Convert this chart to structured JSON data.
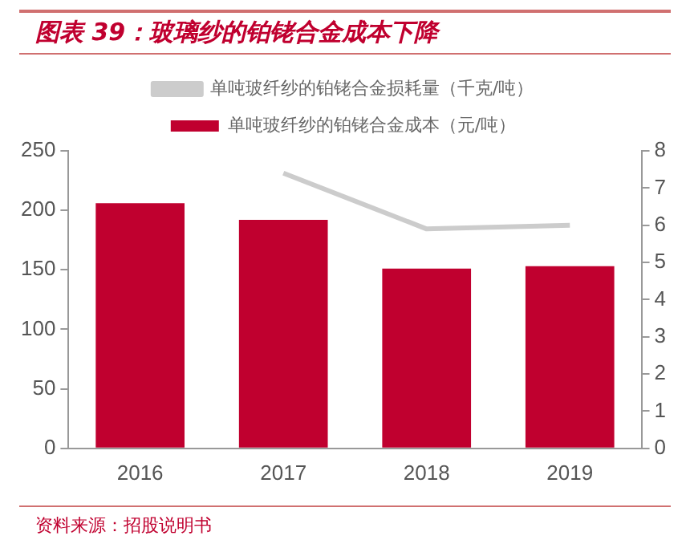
{
  "chart_data": {
    "type": "bar",
    "title": "图表 39：玻璃纱的铂铑合金成本下降",
    "categories": [
      "2016",
      "2017",
      "2018",
      "2019"
    ],
    "series": [
      {
        "name": "单吨玻纤纱的铂铑合金成本（元/吨）",
        "color": "#c0002f",
        "values": [
          206,
          192,
          151,
          153
        ]
      },
      {
        "name": "单吨玻纤纱的铂铑合金损耗量（千克/吨）",
        "type": "line",
        "axis": "y2",
        "color": "#cccccc",
        "values": [
          null,
          7.4,
          5.9,
          6.0
        ],
        "marker": "none"
      }
    ],
    "ylim": [
      0,
      250
    ],
    "yticks": [
      0,
      50,
      100,
      150,
      200,
      250
    ],
    "y2lim": [
      0,
      8
    ],
    "y2ticks": [
      0,
      1,
      2,
      3,
      4,
      5,
      6,
      7,
      8
    ],
    "grid": false,
    "legend": "top",
    "annotations": [
      "资料来源：招股说明书"
    ]
  }
}
